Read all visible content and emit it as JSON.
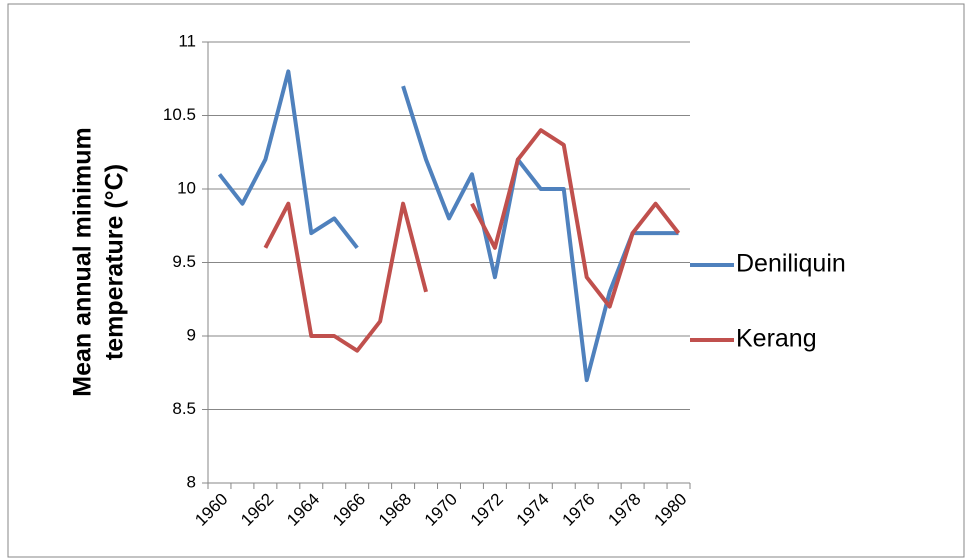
{
  "chart_data": {
    "type": "line",
    "y_label": [
      "Mean annual minimum",
      "temperature (°C)"
    ],
    "categories": [
      "1960",
      null,
      "1962",
      null,
      "1964",
      null,
      "1966",
      null,
      "1968",
      null,
      "1970",
      null,
      "1972",
      null,
      "1974",
      null,
      "1976",
      null,
      "1978",
      null,
      "1980"
    ],
    "series": [
      {
        "name": "Deniliquin",
        "color": "#4f81bd",
        "values": [
          10.1,
          9.9,
          10.2,
          10.8,
          9.7,
          9.8,
          9.6,
          null,
          10.7,
          10.2,
          9.8,
          10.1,
          9.4,
          10.2,
          10.0,
          10.0,
          8.7,
          9.3,
          9.7,
          9.7,
          9.7
        ]
      },
      {
        "name": "Kerang",
        "color": "#c0504d",
        "values": [
          null,
          null,
          9.6,
          9.9,
          9.0,
          9.0,
          8.9,
          9.1,
          9.9,
          9.3,
          null,
          9.9,
          9.6,
          10.2,
          10.4,
          10.3,
          9.4,
          9.2,
          9.7,
          9.9,
          9.7
        ]
      }
    ],
    "ylim": [
      8,
      11
    ],
    "yticks": [
      8,
      8.5,
      9,
      9.5,
      10,
      10.5,
      11
    ],
    "grid": true,
    "legend": "right"
  }
}
